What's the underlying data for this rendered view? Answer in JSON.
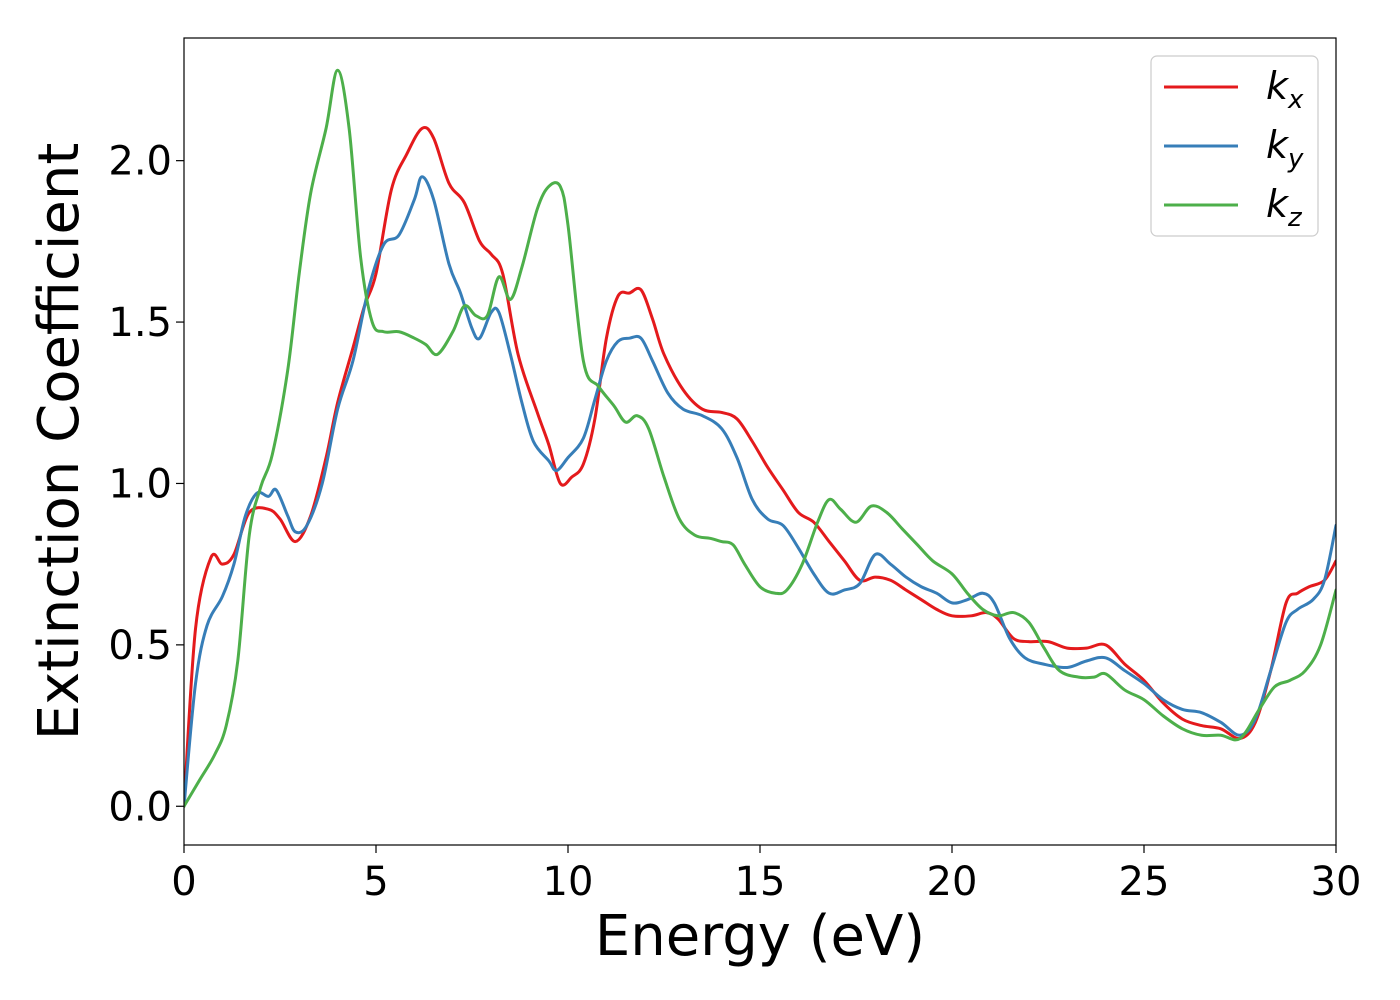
{
  "chart_data": {
    "type": "line",
    "title": "",
    "xlabel": "Energy (eV)",
    "ylabel": "Extinction Coefficient",
    "xlim": [
      0,
      30
    ],
    "ylim": [
      -0.12,
      2.38
    ],
    "xticks": [
      0,
      5,
      10,
      15,
      20,
      25,
      30
    ],
    "xtick_labels": [
      "0",
      "5",
      "10",
      "15",
      "20",
      "25",
      "30"
    ],
    "yticks": [
      0.0,
      0.5,
      1.0,
      1.5,
      2.0
    ],
    "ytick_labels": [
      "0.0",
      "0.5",
      "1.0",
      "1.5",
      "2.0"
    ],
    "grid": false,
    "legend_position": "top-right",
    "series": [
      {
        "name": "k",
        "subscript": "x",
        "color": "#e41a1c",
        "points": [
          [
            0,
            0.0
          ],
          [
            0.3,
            0.55
          ],
          [
            0.7,
            0.77
          ],
          [
            1.0,
            0.75
          ],
          [
            1.3,
            0.78
          ],
          [
            1.7,
            0.91
          ],
          [
            2.2,
            0.92
          ],
          [
            2.5,
            0.89
          ],
          [
            2.9,
            0.82
          ],
          [
            3.3,
            0.9
          ],
          [
            3.7,
            1.08
          ],
          [
            4.0,
            1.25
          ],
          [
            4.4,
            1.42
          ],
          [
            4.7,
            1.55
          ],
          [
            5.0,
            1.65
          ],
          [
            5.4,
            1.91
          ],
          [
            5.8,
            2.02
          ],
          [
            6.2,
            2.1
          ],
          [
            6.5,
            2.07
          ],
          [
            6.9,
            1.93
          ],
          [
            7.3,
            1.87
          ],
          [
            7.7,
            1.75
          ],
          [
            8.0,
            1.71
          ],
          [
            8.3,
            1.65
          ],
          [
            8.7,
            1.4
          ],
          [
            9.2,
            1.22
          ],
          [
            9.5,
            1.12
          ],
          [
            9.8,
            1.0
          ],
          [
            10.1,
            1.02
          ],
          [
            10.4,
            1.06
          ],
          [
            10.7,
            1.2
          ],
          [
            11.0,
            1.45
          ],
          [
            11.3,
            1.58
          ],
          [
            11.6,
            1.59
          ],
          [
            11.9,
            1.6
          ],
          [
            12.2,
            1.51
          ],
          [
            12.5,
            1.4
          ],
          [
            13.0,
            1.29
          ],
          [
            13.5,
            1.23
          ],
          [
            14.0,
            1.22
          ],
          [
            14.4,
            1.2
          ],
          [
            14.8,
            1.13
          ],
          [
            15.2,
            1.05
          ],
          [
            15.6,
            0.98
          ],
          [
            16.0,
            0.91
          ],
          [
            16.4,
            0.88
          ],
          [
            16.8,
            0.82
          ],
          [
            17.2,
            0.76
          ],
          [
            17.6,
            0.7
          ],
          [
            18.0,
            0.71
          ],
          [
            18.4,
            0.7
          ],
          [
            18.8,
            0.67
          ],
          [
            19.2,
            0.64
          ],
          [
            19.6,
            0.61
          ],
          [
            20.0,
            0.59
          ],
          [
            20.5,
            0.59
          ],
          [
            20.9,
            0.6
          ],
          [
            21.2,
            0.58
          ],
          [
            21.6,
            0.52
          ],
          [
            22.0,
            0.51
          ],
          [
            22.5,
            0.51
          ],
          [
            23.0,
            0.49
          ],
          [
            23.5,
            0.49
          ],
          [
            24.0,
            0.5
          ],
          [
            24.5,
            0.44
          ],
          [
            25.0,
            0.39
          ],
          [
            25.5,
            0.32
          ],
          [
            26.0,
            0.27
          ],
          [
            26.5,
            0.25
          ],
          [
            27.0,
            0.24
          ],
          [
            27.5,
            0.21
          ],
          [
            27.9,
            0.26
          ],
          [
            28.3,
            0.42
          ],
          [
            28.7,
            0.63
          ],
          [
            29.0,
            0.66
          ],
          [
            29.3,
            0.68
          ],
          [
            29.7,
            0.7
          ],
          [
            30.0,
            0.76
          ]
        ]
      },
      {
        "name": "k",
        "subscript": "y",
        "color": "#377eb8",
        "points": [
          [
            0,
            0.0
          ],
          [
            0.3,
            0.38
          ],
          [
            0.6,
            0.56
          ],
          [
            1.0,
            0.65
          ],
          [
            1.3,
            0.75
          ],
          [
            1.6,
            0.9
          ],
          [
            1.9,
            0.97
          ],
          [
            2.2,
            0.96
          ],
          [
            2.4,
            0.98
          ],
          [
            2.7,
            0.9
          ],
          [
            2.9,
            0.85
          ],
          [
            3.2,
            0.87
          ],
          [
            3.6,
            1.0
          ],
          [
            4.0,
            1.23
          ],
          [
            4.4,
            1.38
          ],
          [
            4.8,
            1.6
          ],
          [
            5.2,
            1.74
          ],
          [
            5.6,
            1.77
          ],
          [
            6.0,
            1.88
          ],
          [
            6.2,
            1.95
          ],
          [
            6.5,
            1.88
          ],
          [
            6.9,
            1.68
          ],
          [
            7.2,
            1.59
          ],
          [
            7.5,
            1.48
          ],
          [
            7.7,
            1.45
          ],
          [
            8.0,
            1.53
          ],
          [
            8.2,
            1.53
          ],
          [
            8.5,
            1.4
          ],
          [
            8.8,
            1.25
          ],
          [
            9.1,
            1.13
          ],
          [
            9.5,
            1.07
          ],
          [
            9.7,
            1.04
          ],
          [
            10.0,
            1.08
          ],
          [
            10.4,
            1.14
          ],
          [
            10.7,
            1.26
          ],
          [
            11.0,
            1.38
          ],
          [
            11.3,
            1.44
          ],
          [
            11.6,
            1.45
          ],
          [
            11.9,
            1.45
          ],
          [
            12.2,
            1.38
          ],
          [
            12.6,
            1.28
          ],
          [
            13.0,
            1.23
          ],
          [
            13.5,
            1.21
          ],
          [
            14.0,
            1.17
          ],
          [
            14.4,
            1.08
          ],
          [
            14.8,
            0.95
          ],
          [
            15.2,
            0.89
          ],
          [
            15.6,
            0.87
          ],
          [
            16.0,
            0.8
          ],
          [
            16.4,
            0.72
          ],
          [
            16.8,
            0.66
          ],
          [
            17.2,
            0.67
          ],
          [
            17.6,
            0.69
          ],
          [
            18.0,
            0.78
          ],
          [
            18.4,
            0.75
          ],
          [
            18.8,
            0.71
          ],
          [
            19.2,
            0.68
          ],
          [
            19.6,
            0.66
          ],
          [
            20.0,
            0.63
          ],
          [
            20.4,
            0.64
          ],
          [
            20.8,
            0.66
          ],
          [
            21.1,
            0.63
          ],
          [
            21.5,
            0.52
          ],
          [
            21.9,
            0.46
          ],
          [
            22.4,
            0.44
          ],
          [
            23.0,
            0.43
          ],
          [
            23.5,
            0.45
          ],
          [
            24.0,
            0.46
          ],
          [
            24.5,
            0.42
          ],
          [
            25.0,
            0.38
          ],
          [
            25.5,
            0.33
          ],
          [
            26.0,
            0.3
          ],
          [
            26.5,
            0.29
          ],
          [
            27.0,
            0.26
          ],
          [
            27.5,
            0.22
          ],
          [
            27.9,
            0.27
          ],
          [
            28.3,
            0.42
          ],
          [
            28.7,
            0.57
          ],
          [
            29.0,
            0.61
          ],
          [
            29.4,
            0.64
          ],
          [
            29.7,
            0.7
          ],
          [
            30.0,
            0.87
          ]
        ]
      },
      {
        "name": "k",
        "subscript": "z",
        "color": "#4daf4a",
        "points": [
          [
            0,
            0.0
          ],
          [
            0.4,
            0.08
          ],
          [
            0.8,
            0.16
          ],
          [
            1.1,
            0.25
          ],
          [
            1.4,
            0.45
          ],
          [
            1.7,
            0.84
          ],
          [
            2.0,
            0.99
          ],
          [
            2.3,
            1.09
          ],
          [
            2.7,
            1.35
          ],
          [
            3.0,
            1.65
          ],
          [
            3.3,
            1.9
          ],
          [
            3.7,
            2.1
          ],
          [
            4.0,
            2.28
          ],
          [
            4.3,
            2.1
          ],
          [
            4.6,
            1.7
          ],
          [
            4.9,
            1.5
          ],
          [
            5.2,
            1.47
          ],
          [
            5.6,
            1.47
          ],
          [
            6.0,
            1.45
          ],
          [
            6.3,
            1.43
          ],
          [
            6.6,
            1.4
          ],
          [
            7.0,
            1.47
          ],
          [
            7.3,
            1.55
          ],
          [
            7.6,
            1.52
          ],
          [
            7.9,
            1.52
          ],
          [
            8.2,
            1.64
          ],
          [
            8.5,
            1.57
          ],
          [
            8.8,
            1.67
          ],
          [
            9.2,
            1.85
          ],
          [
            9.5,
            1.92
          ],
          [
            9.8,
            1.92
          ],
          [
            10.0,
            1.8
          ],
          [
            10.4,
            1.38
          ],
          [
            10.8,
            1.3
          ],
          [
            11.2,
            1.24
          ],
          [
            11.5,
            1.19
          ],
          [
            11.8,
            1.21
          ],
          [
            12.1,
            1.17
          ],
          [
            12.5,
            1.02
          ],
          [
            12.9,
            0.89
          ],
          [
            13.3,
            0.84
          ],
          [
            13.7,
            0.83
          ],
          [
            14.0,
            0.82
          ],
          [
            14.3,
            0.81
          ],
          [
            14.6,
            0.75
          ],
          [
            15.0,
            0.68
          ],
          [
            15.4,
            0.66
          ],
          [
            15.7,
            0.67
          ],
          [
            16.1,
            0.75
          ],
          [
            16.5,
            0.88
          ],
          [
            16.8,
            0.95
          ],
          [
            17.1,
            0.92
          ],
          [
            17.5,
            0.88
          ],
          [
            17.9,
            0.93
          ],
          [
            18.3,
            0.91
          ],
          [
            18.7,
            0.86
          ],
          [
            19.1,
            0.81
          ],
          [
            19.5,
            0.76
          ],
          [
            20.0,
            0.72
          ],
          [
            20.4,
            0.66
          ],
          [
            20.8,
            0.61
          ],
          [
            21.2,
            0.59
          ],
          [
            21.6,
            0.6
          ],
          [
            22.0,
            0.57
          ],
          [
            22.4,
            0.49
          ],
          [
            22.8,
            0.42
          ],
          [
            23.3,
            0.4
          ],
          [
            23.7,
            0.4
          ],
          [
            24.0,
            0.41
          ],
          [
            24.5,
            0.36
          ],
          [
            25.0,
            0.33
          ],
          [
            25.5,
            0.28
          ],
          [
            26.0,
            0.24
          ],
          [
            26.5,
            0.22
          ],
          [
            27.0,
            0.22
          ],
          [
            27.5,
            0.21
          ],
          [
            28.0,
            0.3
          ],
          [
            28.4,
            0.37
          ],
          [
            28.8,
            0.39
          ],
          [
            29.2,
            0.42
          ],
          [
            29.6,
            0.5
          ],
          [
            30.0,
            0.67
          ]
        ]
      }
    ]
  }
}
